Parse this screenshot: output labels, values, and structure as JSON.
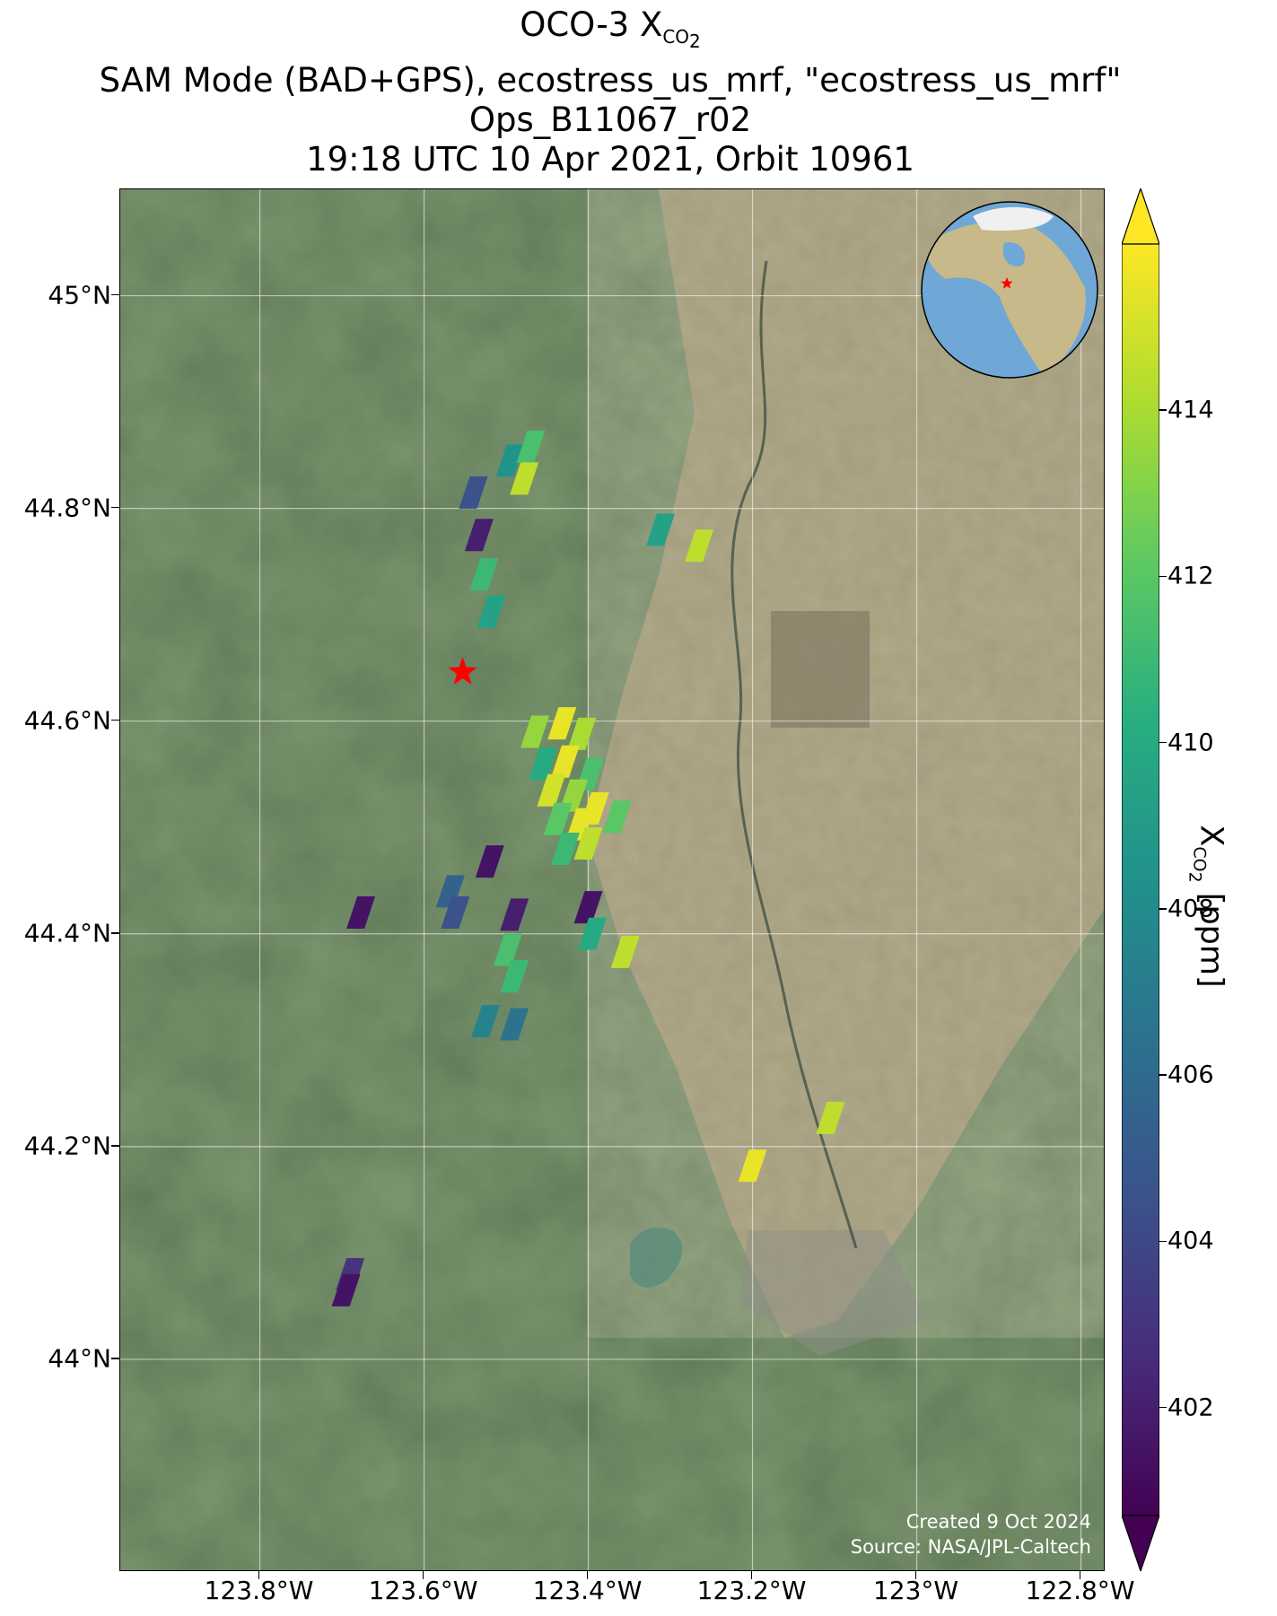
{
  "title": {
    "line1_prefix": "OCO-3 X",
    "line1_sub": "CO",
    "line1_subsub": "2",
    "line2": "SAM Mode (BAD+GPS), ecostress_us_mrf, \"ecostress_us_mrf\"",
    "line3": "Ops_B11067_r02",
    "line4": "19:18 UTC 10 Apr 2021, Orbit 10961"
  },
  "map": {
    "lon_range": [
      -123.97,
      -122.77
    ],
    "lat_range": [
      43.8,
      45.1
    ],
    "target_site": {
      "lon": -123.553,
      "lat": 44.646,
      "marker": "red-star-icon",
      "color": "#ff0000"
    },
    "inset_globe": {
      "marker": "red-star-icon",
      "ocean_color": "#6fa8d6"
    },
    "credit_line1": "Created 9 Oct 2024",
    "credit_line2": "Source: NASA/JPL-Caltech"
  },
  "axes": {
    "y_ticks": [
      {
        "value": 45.0,
        "label": "45°N"
      },
      {
        "value": 44.8,
        "label": "44.8°N"
      },
      {
        "value": 44.6,
        "label": "44.6°N"
      },
      {
        "value": 44.4,
        "label": "44.4°N"
      },
      {
        "value": 44.2,
        "label": "44.2°N"
      },
      {
        "value": 44.0,
        "label": "44°N"
      }
    ],
    "x_ticks": [
      {
        "value": -123.8,
        "label": "123.8°W"
      },
      {
        "value": -123.6,
        "label": "123.6°W"
      },
      {
        "value": -123.4,
        "label": "123.4°W"
      },
      {
        "value": -123.2,
        "label": "123.2°W"
      },
      {
        "value": -123.0,
        "label": "123°W"
      },
      {
        "value": -122.8,
        "label": "122.8°W"
      }
    ]
  },
  "colorbar": {
    "colormap": "viridis",
    "range": [
      400.7,
      416.0
    ],
    "extend": "both",
    "label_prefix": "X",
    "label_sub": "CO",
    "label_subsub": "2",
    "label_suffix": " [ppm]",
    "ticks": [
      {
        "value": 402,
        "label": "402"
      },
      {
        "value": 404,
        "label": "404"
      },
      {
        "value": 406,
        "label": "406"
      },
      {
        "value": 408,
        "label": "408"
      },
      {
        "value": 410,
        "label": "410"
      },
      {
        "value": 412,
        "label": "412"
      },
      {
        "value": 414,
        "label": "414"
      }
    ]
  },
  "chart_data": {
    "type": "scatter",
    "title": "OCO-3 XCO2",
    "xlabel": "",
    "ylabel": "",
    "xlim": [
      -123.97,
      -122.77
    ],
    "ylim": [
      43.8,
      45.1
    ],
    "grid": true,
    "colorbar_label": "XCO2 [ppm]",
    "soundings": [
      {
        "lon": -123.54,
        "lat": 44.815,
        "xco2": 404.5
      },
      {
        "lon": -123.495,
        "lat": 44.845,
        "xco2": 408.5
      },
      {
        "lon": -123.47,
        "lat": 44.858,
        "xco2": 411.5
      },
      {
        "lon": -123.478,
        "lat": 44.828,
        "xco2": 414.5
      },
      {
        "lon": -123.533,
        "lat": 44.775,
        "xco2": 402.0
      },
      {
        "lon": -123.527,
        "lat": 44.738,
        "xco2": 411.0
      },
      {
        "lon": -123.518,
        "lat": 44.703,
        "xco2": 409.5
      },
      {
        "lon": -123.312,
        "lat": 44.78,
        "xco2": 409.5
      },
      {
        "lon": -123.265,
        "lat": 44.765,
        "xco2": 414.5
      },
      {
        "lon": -123.465,
        "lat": 44.59,
        "xco2": 413.5
      },
      {
        "lon": -123.432,
        "lat": 44.598,
        "xco2": 415.5
      },
      {
        "lon": -123.408,
        "lat": 44.588,
        "xco2": 414.0
      },
      {
        "lon": -123.455,
        "lat": 44.56,
        "xco2": 410.0
      },
      {
        "lon": -123.428,
        "lat": 44.562,
        "xco2": 415.5
      },
      {
        "lon": -123.398,
        "lat": 44.55,
        "xco2": 411.5
      },
      {
        "lon": -123.445,
        "lat": 44.535,
        "xco2": 415.0
      },
      {
        "lon": -123.418,
        "lat": 44.53,
        "xco2": 413.5
      },
      {
        "lon": -123.392,
        "lat": 44.518,
        "xco2": 415.5
      },
      {
        "lon": -123.437,
        "lat": 44.508,
        "xco2": 412.0
      },
      {
        "lon": -123.41,
        "lat": 44.503,
        "xco2": 415.5
      },
      {
        "lon": -123.365,
        "lat": 44.51,
        "xco2": 412.0
      },
      {
        "lon": -123.428,
        "lat": 44.48,
        "xco2": 411.0
      },
      {
        "lon": -123.4,
        "lat": 44.485,
        "xco2": 414.5
      },
      {
        "lon": -123.52,
        "lat": 44.468,
        "xco2": 401.5
      },
      {
        "lon": -123.568,
        "lat": 44.44,
        "xco2": 405.5
      },
      {
        "lon": -123.562,
        "lat": 44.42,
        "xco2": 404.5
      },
      {
        "lon": -123.677,
        "lat": 44.42,
        "xco2": 401.5
      },
      {
        "lon": -123.49,
        "lat": 44.418,
        "xco2": 402.0
      },
      {
        "lon": -123.4,
        "lat": 44.425,
        "xco2": 401.5
      },
      {
        "lon": -123.395,
        "lat": 44.4,
        "xco2": 410.0
      },
      {
        "lon": -123.355,
        "lat": 44.383,
        "xco2": 414.5
      },
      {
        "lon": -123.498,
        "lat": 44.385,
        "xco2": 411.5
      },
      {
        "lon": -123.49,
        "lat": 44.36,
        "xco2": 411.0
      },
      {
        "lon": -123.525,
        "lat": 44.318,
        "xco2": 407.5
      },
      {
        "lon": -123.49,
        "lat": 44.315,
        "xco2": 406.5
      },
      {
        "lon": -123.105,
        "lat": 44.227,
        "xco2": 414.5
      },
      {
        "lon": -123.2,
        "lat": 44.182,
        "xco2": 415.5
      },
      {
        "lon": -123.69,
        "lat": 44.08,
        "xco2": 403.0
      },
      {
        "lon": -123.695,
        "lat": 44.065,
        "xco2": 401.5
      }
    ]
  }
}
